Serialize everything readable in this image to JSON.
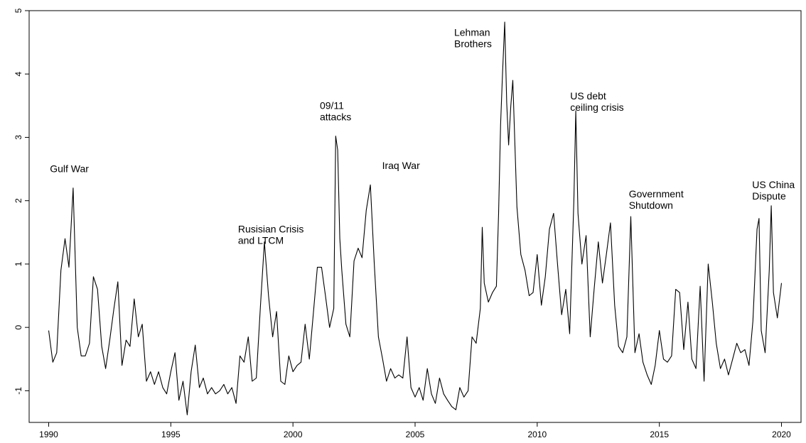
{
  "chart_data": {
    "type": "line",
    "title": "",
    "xlabel": "",
    "ylabel": "",
    "xlim": [
      1989.2,
      2020.8
    ],
    "ylim": [
      -1.5,
      5
    ],
    "x_ticks": [
      1990,
      1995,
      2000,
      2005,
      2010,
      2015,
      2020
    ],
    "y_ticks": [
      -1,
      0,
      1,
      2,
      3,
      4,
      5
    ],
    "grid": false,
    "legend": "none",
    "line_color": "#000000",
    "series": [
      {
        "points": [
          [
            1990.0,
            -0.05
          ],
          [
            1990.17,
            -0.55
          ],
          [
            1990.33,
            -0.4
          ],
          [
            1990.5,
            0.9
          ],
          [
            1990.67,
            1.4
          ],
          [
            1990.83,
            0.95
          ],
          [
            1991.0,
            2.2
          ],
          [
            1991.17,
            0.0
          ],
          [
            1991.33,
            -0.45
          ],
          [
            1991.5,
            -0.45
          ],
          [
            1991.67,
            -0.25
          ],
          [
            1991.83,
            0.8
          ],
          [
            1992.0,
            0.6
          ],
          [
            1992.17,
            -0.3
          ],
          [
            1992.33,
            -0.65
          ],
          [
            1992.5,
            -0.2
          ],
          [
            1992.67,
            0.3
          ],
          [
            1992.83,
            0.72
          ],
          [
            1993.0,
            -0.6
          ],
          [
            1993.17,
            -0.2
          ],
          [
            1993.33,
            -0.3
          ],
          [
            1993.5,
            0.45
          ],
          [
            1993.67,
            -0.15
          ],
          [
            1993.83,
            0.05
          ],
          [
            1994.0,
            -0.85
          ],
          [
            1994.17,
            -0.7
          ],
          [
            1994.33,
            -0.9
          ],
          [
            1994.5,
            -0.7
          ],
          [
            1994.67,
            -0.95
          ],
          [
            1994.83,
            -1.05
          ],
          [
            1995.0,
            -0.7
          ],
          [
            1995.17,
            -0.4
          ],
          [
            1995.33,
            -1.15
          ],
          [
            1995.5,
            -0.85
          ],
          [
            1995.67,
            -1.38
          ],
          [
            1995.83,
            -0.7
          ],
          [
            1996.0,
            -0.28
          ],
          [
            1996.17,
            -0.95
          ],
          [
            1996.33,
            -0.8
          ],
          [
            1996.5,
            -1.05
          ],
          [
            1996.67,
            -0.95
          ],
          [
            1996.83,
            -1.05
          ],
          [
            1997.0,
            -1.0
          ],
          [
            1997.17,
            -0.9
          ],
          [
            1997.33,
            -1.05
          ],
          [
            1997.5,
            -0.95
          ],
          [
            1997.67,
            -1.2
          ],
          [
            1997.83,
            -0.45
          ],
          [
            1998.0,
            -0.55
          ],
          [
            1998.17,
            -0.15
          ],
          [
            1998.33,
            -0.85
          ],
          [
            1998.5,
            -0.8
          ],
          [
            1998.67,
            0.35
          ],
          [
            1998.83,
            1.35
          ],
          [
            1999.0,
            0.5
          ],
          [
            1999.17,
            -0.15
          ],
          [
            1999.33,
            0.25
          ],
          [
            1999.5,
            -0.85
          ],
          [
            1999.67,
            -0.9
          ],
          [
            1999.83,
            -0.45
          ],
          [
            2000.0,
            -0.7
          ],
          [
            2000.17,
            -0.6
          ],
          [
            2000.33,
            -0.55
          ],
          [
            2000.5,
            0.05
          ],
          [
            2000.67,
            -0.5
          ],
          [
            2000.83,
            0.2
          ],
          [
            2001.0,
            0.95
          ],
          [
            2001.17,
            0.95
          ],
          [
            2001.33,
            0.5
          ],
          [
            2001.5,
            0.0
          ],
          [
            2001.67,
            0.3
          ],
          [
            2001.75,
            3.02
          ],
          [
            2001.83,
            2.8
          ],
          [
            2001.92,
            1.4
          ],
          [
            2002.0,
            0.9
          ],
          [
            2002.17,
            0.05
          ],
          [
            2002.33,
            -0.15
          ],
          [
            2002.5,
            1.05
          ],
          [
            2002.67,
            1.25
          ],
          [
            2002.83,
            1.1
          ],
          [
            2003.0,
            1.85
          ],
          [
            2003.17,
            2.25
          ],
          [
            2003.33,
            1.0
          ],
          [
            2003.5,
            -0.15
          ],
          [
            2003.67,
            -0.5
          ],
          [
            2003.83,
            -0.85
          ],
          [
            2004.0,
            -0.65
          ],
          [
            2004.17,
            -0.8
          ],
          [
            2004.33,
            -0.75
          ],
          [
            2004.5,
            -0.8
          ],
          [
            2004.67,
            -0.15
          ],
          [
            2004.83,
            -0.95
          ],
          [
            2005.0,
            -1.1
          ],
          [
            2005.17,
            -0.95
          ],
          [
            2005.33,
            -1.15
          ],
          [
            2005.5,
            -0.65
          ],
          [
            2005.67,
            -1.05
          ],
          [
            2005.83,
            -1.2
          ],
          [
            2006.0,
            -0.8
          ],
          [
            2006.17,
            -1.05
          ],
          [
            2006.33,
            -1.15
          ],
          [
            2006.5,
            -1.25
          ],
          [
            2006.67,
            -1.3
          ],
          [
            2006.83,
            -0.95
          ],
          [
            2007.0,
            -1.1
          ],
          [
            2007.17,
            -1.0
          ],
          [
            2007.33,
            -0.15
          ],
          [
            2007.5,
            -0.25
          ],
          [
            2007.67,
            0.3
          ],
          [
            2007.75,
            1.58
          ],
          [
            2007.83,
            0.7
          ],
          [
            2008.0,
            0.4
          ],
          [
            2008.17,
            0.55
          ],
          [
            2008.33,
            0.65
          ],
          [
            2008.42,
            1.8
          ],
          [
            2008.5,
            3.2
          ],
          [
            2008.58,
            4.0
          ],
          [
            2008.67,
            4.82
          ],
          [
            2008.75,
            3.55
          ],
          [
            2008.83,
            2.88
          ],
          [
            2008.92,
            3.5
          ],
          [
            2009.0,
            3.9
          ],
          [
            2009.17,
            1.9
          ],
          [
            2009.33,
            1.15
          ],
          [
            2009.5,
            0.9
          ],
          [
            2009.67,
            0.5
          ],
          [
            2009.83,
            0.55
          ],
          [
            2010.0,
            1.15
          ],
          [
            2010.17,
            0.35
          ],
          [
            2010.33,
            0.8
          ],
          [
            2010.5,
            1.55
          ],
          [
            2010.67,
            1.8
          ],
          [
            2010.83,
            1.0
          ],
          [
            2011.0,
            0.2
          ],
          [
            2011.17,
            0.6
          ],
          [
            2011.33,
            -0.1
          ],
          [
            2011.5,
            2.0
          ],
          [
            2011.58,
            3.42
          ],
          [
            2011.67,
            1.8
          ],
          [
            2011.83,
            1.0
          ],
          [
            2012.0,
            1.45
          ],
          [
            2012.17,
            -0.15
          ],
          [
            2012.33,
            0.6
          ],
          [
            2012.5,
            1.35
          ],
          [
            2012.67,
            0.7
          ],
          [
            2012.83,
            1.15
          ],
          [
            2013.0,
            1.65
          ],
          [
            2013.17,
            0.35
          ],
          [
            2013.33,
            -0.3
          ],
          [
            2013.5,
            -0.4
          ],
          [
            2013.67,
            -0.15
          ],
          [
            2013.83,
            1.75
          ],
          [
            2014.0,
            -0.4
          ],
          [
            2014.17,
            -0.1
          ],
          [
            2014.33,
            -0.55
          ],
          [
            2014.5,
            -0.75
          ],
          [
            2014.67,
            -0.9
          ],
          [
            2014.83,
            -0.6
          ],
          [
            2015.0,
            -0.05
          ],
          [
            2015.17,
            -0.5
          ],
          [
            2015.33,
            -0.55
          ],
          [
            2015.5,
            -0.45
          ],
          [
            2015.67,
            0.6
          ],
          [
            2015.83,
            0.55
          ],
          [
            2016.0,
            -0.35
          ],
          [
            2016.17,
            0.4
          ],
          [
            2016.33,
            -0.5
          ],
          [
            2016.5,
            -0.65
          ],
          [
            2016.67,
            0.65
          ],
          [
            2016.83,
            -0.85
          ],
          [
            2017.0,
            1.0
          ],
          [
            2017.17,
            0.4
          ],
          [
            2017.33,
            -0.25
          ],
          [
            2017.5,
            -0.65
          ],
          [
            2017.67,
            -0.5
          ],
          [
            2017.83,
            -0.75
          ],
          [
            2018.0,
            -0.5
          ],
          [
            2018.17,
            -0.25
          ],
          [
            2018.33,
            -0.4
          ],
          [
            2018.5,
            -0.35
          ],
          [
            2018.67,
            -0.6
          ],
          [
            2018.83,
            0.1
          ],
          [
            2019.0,
            1.55
          ],
          [
            2019.08,
            1.72
          ],
          [
            2019.17,
            -0.05
          ],
          [
            2019.33,
            -0.4
          ],
          [
            2019.5,
            0.9
          ],
          [
            2019.58,
            1.92
          ],
          [
            2019.67,
            0.55
          ],
          [
            2019.83,
            0.15
          ],
          [
            2020.0,
            0.7
          ]
        ]
      }
    ],
    "annotations": [
      {
        "lines": [
          "Gulf War"
        ],
        "x": 1990.05,
        "y": 2.45
      },
      {
        "lines": [
          "Rusisian Crisis",
          "and LTCM"
        ],
        "x": 1997.75,
        "y": 1.5
      },
      {
        "lines": [
          "09/11",
          "attacks"
        ],
        "x": 2001.1,
        "y": 3.45
      },
      {
        "lines": [
          "Iraq War"
        ],
        "x": 2003.65,
        "y": 2.5
      },
      {
        "lines": [
          "Lehman",
          "Brothers"
        ],
        "x": 2006.6,
        "y": 4.6
      },
      {
        "lines": [
          "US debt",
          "ceiling crisis"
        ],
        "x": 2011.35,
        "y": 3.6
      },
      {
        "lines": [
          "Government",
          "Shutdown"
        ],
        "x": 2013.75,
        "y": 2.05
      },
      {
        "lines": [
          "US China",
          "Dispute"
        ],
        "x": 2018.8,
        "y": 2.2
      }
    ]
  }
}
